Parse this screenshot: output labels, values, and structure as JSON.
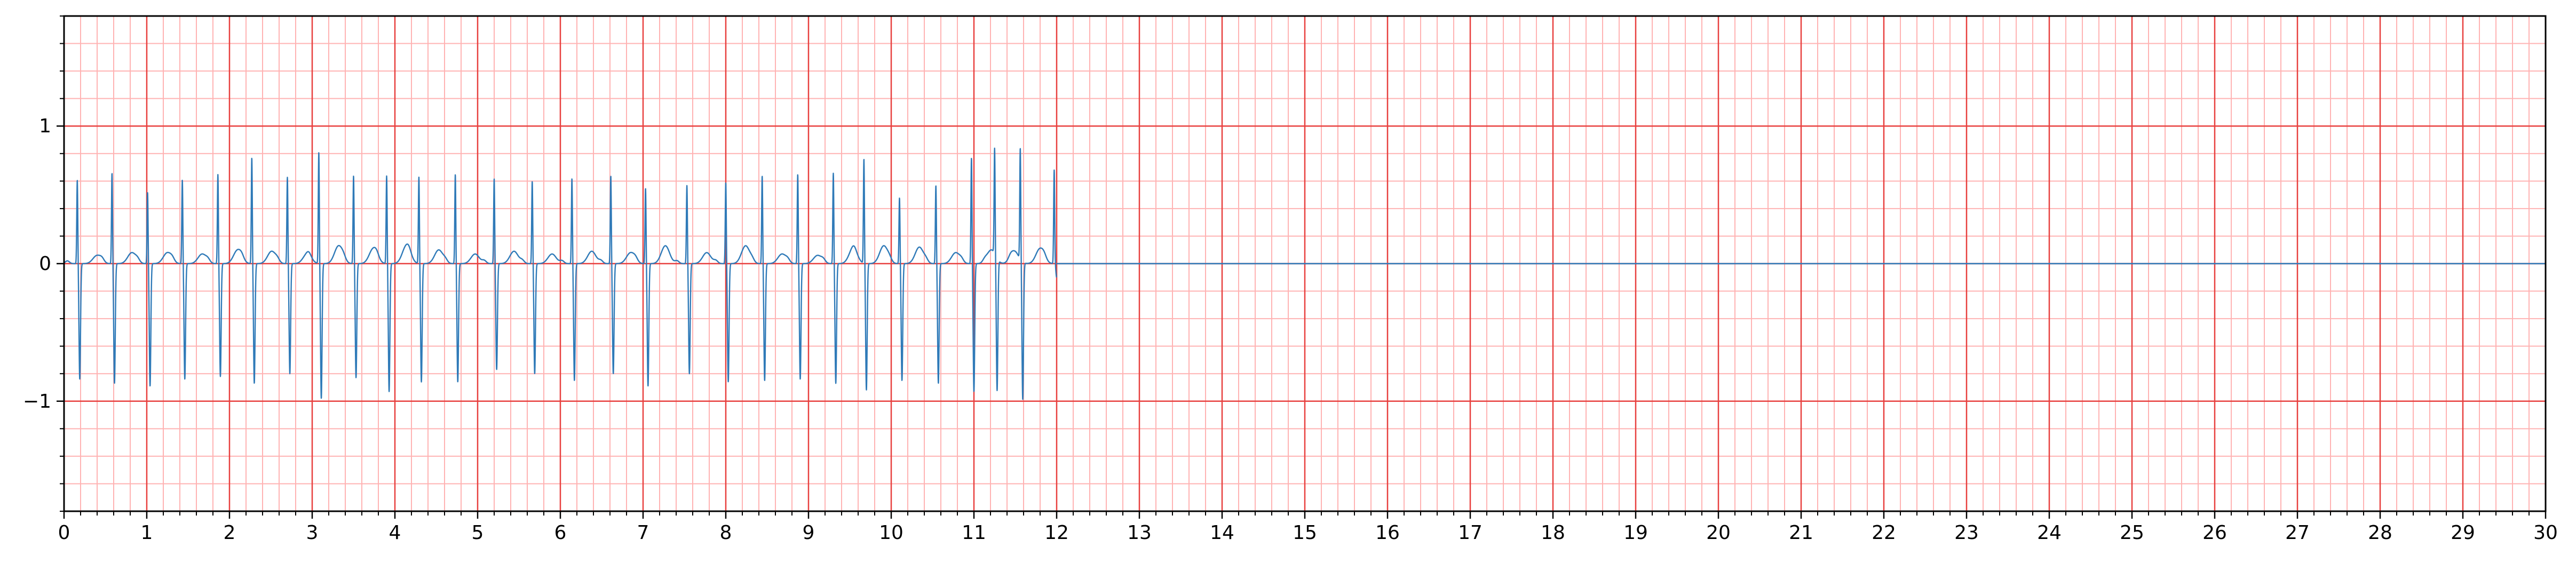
{
  "chart_data": {
    "type": "line",
    "title": "",
    "xlabel": "",
    "ylabel": "",
    "xlim": [
      0,
      30
    ],
    "ylim": [
      -1.8,
      1.8
    ],
    "x_ticks": [
      0,
      1,
      2,
      3,
      4,
      5,
      6,
      7,
      8,
      9,
      10,
      11,
      12,
      13,
      14,
      15,
      16,
      17,
      18,
      19,
      20,
      21,
      22,
      23,
      24,
      25,
      26,
      27,
      28,
      29,
      30
    ],
    "x_tick_labels": [
      "0",
      "1",
      "2",
      "3",
      "4",
      "5",
      "6",
      "7",
      "8",
      "9",
      "10",
      "11",
      "12",
      "13",
      "14",
      "15",
      "16",
      "17",
      "18",
      "19",
      "20",
      "21",
      "22",
      "23",
      "24",
      "25",
      "26",
      "27",
      "28",
      "29",
      "30"
    ],
    "y_ticks": [
      -1,
      0,
      1
    ],
    "y_tick_labels": [
      "−1",
      "0",
      "1"
    ],
    "grid": {
      "major": {
        "x_step": 1,
        "y_step": 1,
        "color": "#e8403f"
      },
      "minor": {
        "x_step": 0.2,
        "y_step": 0.2,
        "color": "#ffb3b3"
      }
    },
    "series": [
      {
        "color": "#2f7ab8",
        "signal_end_x": 12.0,
        "baseline_after_end": 0,
        "beats": [
          {
            "x": 0.16,
            "r": 0.61,
            "s": -0.84,
            "t": 0.06
          },
          {
            "x": 0.58,
            "r": 0.66,
            "s": -0.87,
            "t": 0.08
          },
          {
            "x": 1.01,
            "r": 0.52,
            "s": -0.89,
            "t": 0.08
          },
          {
            "x": 1.43,
            "r": 0.61,
            "s": -0.84,
            "t": 0.07
          },
          {
            "x": 1.86,
            "r": 0.65,
            "s": -0.82,
            "t": 0.1
          },
          {
            "x": 2.27,
            "r": 0.77,
            "s": -0.87,
            "t": 0.09
          },
          {
            "x": 2.7,
            "r": 0.63,
            "s": -0.8,
            "t": 0.07
          },
          {
            "x": 3.08,
            "r": 0.81,
            "s": -0.98,
            "t": 0.13
          },
          {
            "x": 3.5,
            "r": 0.64,
            "s": -0.83,
            "t": 0.11
          },
          {
            "x": 3.9,
            "r": 0.64,
            "s": -0.93,
            "t": 0.13
          },
          {
            "x": 4.29,
            "r": 0.63,
            "s": -0.86,
            "t": 0.1
          },
          {
            "x": 4.73,
            "r": 0.65,
            "s": -0.86,
            "t": 0.07
          },
          {
            "x": 5.2,
            "r": 0.62,
            "s": -0.77,
            "t": 0.09
          },
          {
            "x": 5.66,
            "r": 0.6,
            "s": -0.8,
            "t": 0.07
          },
          {
            "x": 6.14,
            "r": 0.62,
            "s": -0.85,
            "t": 0.09
          },
          {
            "x": 6.61,
            "r": 0.64,
            "s": -0.8,
            "t": 0.08
          },
          {
            "x": 7.03,
            "r": 0.55,
            "s": -0.89,
            "t": 0.13
          },
          {
            "x": 7.53,
            "r": 0.57,
            "s": -0.8,
            "t": 0.08
          },
          {
            "x": 8.0,
            "r": 0.59,
            "s": -0.86,
            "t": 0.13
          },
          {
            "x": 8.44,
            "r": 0.64,
            "s": -0.85,
            "t": 0.07
          },
          {
            "x": 8.87,
            "r": 0.65,
            "s": -0.84,
            "t": 0.06
          },
          {
            "x": 9.3,
            "r": 0.66,
            "s": -0.87,
            "t": 0.11
          },
          {
            "x": 9.67,
            "r": 0.76,
            "s": -0.92,
            "t": 0.13
          },
          {
            "x": 10.1,
            "r": 0.48,
            "s": -0.85,
            "t": 0.12
          },
          {
            "x": 10.54,
            "r": 0.57,
            "s": -0.87,
            "t": 0.08
          },
          {
            "x": 10.97,
            "r": 0.77,
            "s": -0.93,
            "t": 0.1
          },
          {
            "x": 11.25,
            "r": 0.77,
            "s": -0.96,
            "t": 0.09
          },
          {
            "x": 11.56,
            "r": 0.81,
            "s": -1.0,
            "t": 0.11
          },
          {
            "x": 11.97,
            "r": 0.68,
            "s": -0.1,
            "t": 0.0
          }
        ]
      }
    ]
  }
}
